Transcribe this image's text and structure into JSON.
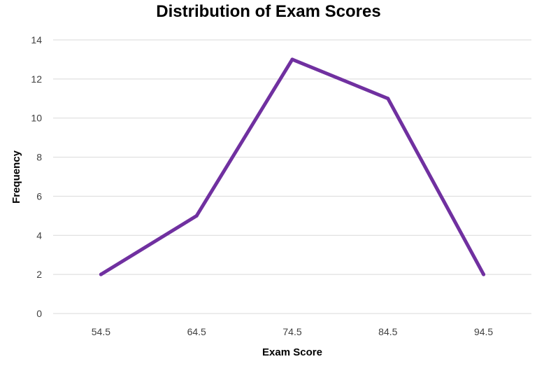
{
  "chart_data": {
    "type": "line",
    "title": "Distribution of Exam Scores",
    "xlabel": "Exam Score",
    "ylabel": "Frequency",
    "categories": [
      "54.5",
      "64.5",
      "74.5",
      "84.5",
      "94.5"
    ],
    "series": [
      {
        "values": [
          2,
          5,
          13,
          11,
          2
        ],
        "color": "#7030a0"
      }
    ],
    "ylim": [
      0,
      14
    ],
    "yticks": [
      "0",
      "2",
      "4",
      "6",
      "8",
      "10",
      "12",
      "14"
    ],
    "grid": true,
    "legend": "none"
  }
}
